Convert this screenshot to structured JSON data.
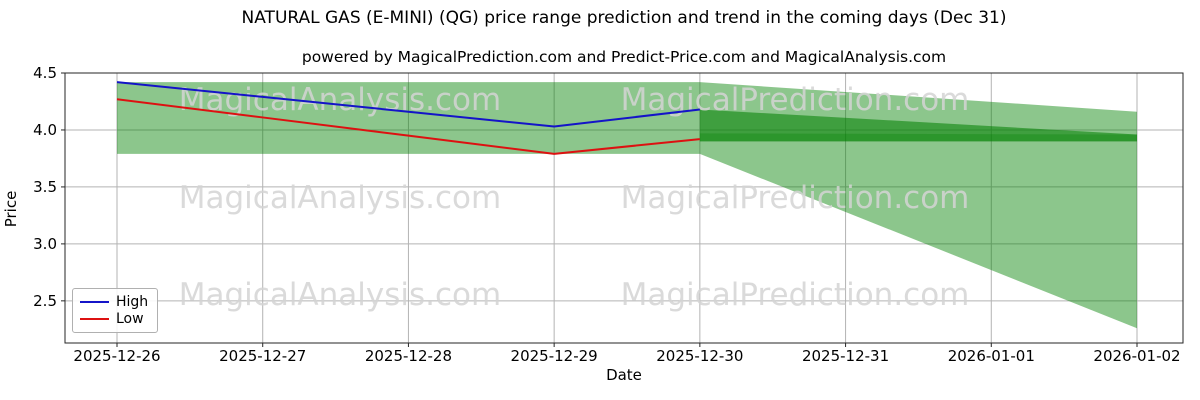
{
  "title": "NATURAL GAS (E-MINI) (QG) price range prediction and trend in the coming days (Dec 31)",
  "subtitle": "powered by MagicalPrediction.com and Predict-Price.com and MagicalAnalysis.com",
  "watermarks": {
    "left": "MagicalAnalysis.com",
    "right": "MagicalPrediction.com"
  },
  "colors": {
    "high": "#1414c8",
    "low": "#dd1111",
    "band": "#008000",
    "grid": "#b3b3b3",
    "spine": "#262626",
    "text": "#000000",
    "watermark": "#d3d3d3"
  },
  "chart_data": {
    "type": "line",
    "title": "NATURAL GAS (E-MINI) (QG) price range prediction and trend in the coming days (Dec 31)",
    "xlabel": "Date",
    "ylabel": "Price",
    "categories": [
      "2025-12-26",
      "2025-12-27",
      "2025-12-28",
      "2025-12-29",
      "2025-12-30",
      "2025-12-31",
      "2026-01-01",
      "2026-01-02"
    ],
    "yticks": [
      2.5,
      3.0,
      3.5,
      4.0,
      4.5
    ],
    "ytick_labels": [
      "2.5",
      "3.0",
      "3.5",
      "4.0",
      "4.5"
    ],
    "ylim": [
      2.13,
      4.5
    ],
    "grid": true,
    "legend_position": "lower left",
    "series": [
      {
        "name": "High",
        "color_key": "high",
        "x": [
          0,
          1,
          2,
          3,
          4
        ],
        "values": [
          4.42,
          4.29,
          4.16,
          4.03,
          4.18
        ]
      },
      {
        "name": "Low",
        "color_key": "low",
        "x": [
          0,
          1,
          2,
          3,
          4
        ],
        "values": [
          4.27,
          4.11,
          3.95,
          3.79,
          3.92
        ]
      }
    ],
    "bands": [
      {
        "name": "history-range-band",
        "shade": "light",
        "x": [
          0,
          4
        ],
        "top": [
          4.42,
          4.42
        ],
        "bottom": [
          3.79,
          3.79
        ]
      },
      {
        "name": "forecast-range-fan",
        "shade": "light",
        "x": [
          4,
          7
        ],
        "top": [
          4.42,
          4.16
        ],
        "bottom": [
          3.79,
          2.26
        ]
      },
      {
        "name": "forecast-high-band",
        "shade": "dark",
        "x": [
          4,
          7
        ],
        "top": [
          4.18,
          3.96
        ],
        "bottom": [
          3.9,
          3.9
        ]
      },
      {
        "name": "forecast-low-band",
        "shade": "darker",
        "x": [
          4,
          7
        ],
        "top": [
          3.97,
          3.96
        ],
        "bottom": [
          3.9,
          3.9
        ]
      }
    ]
  }
}
